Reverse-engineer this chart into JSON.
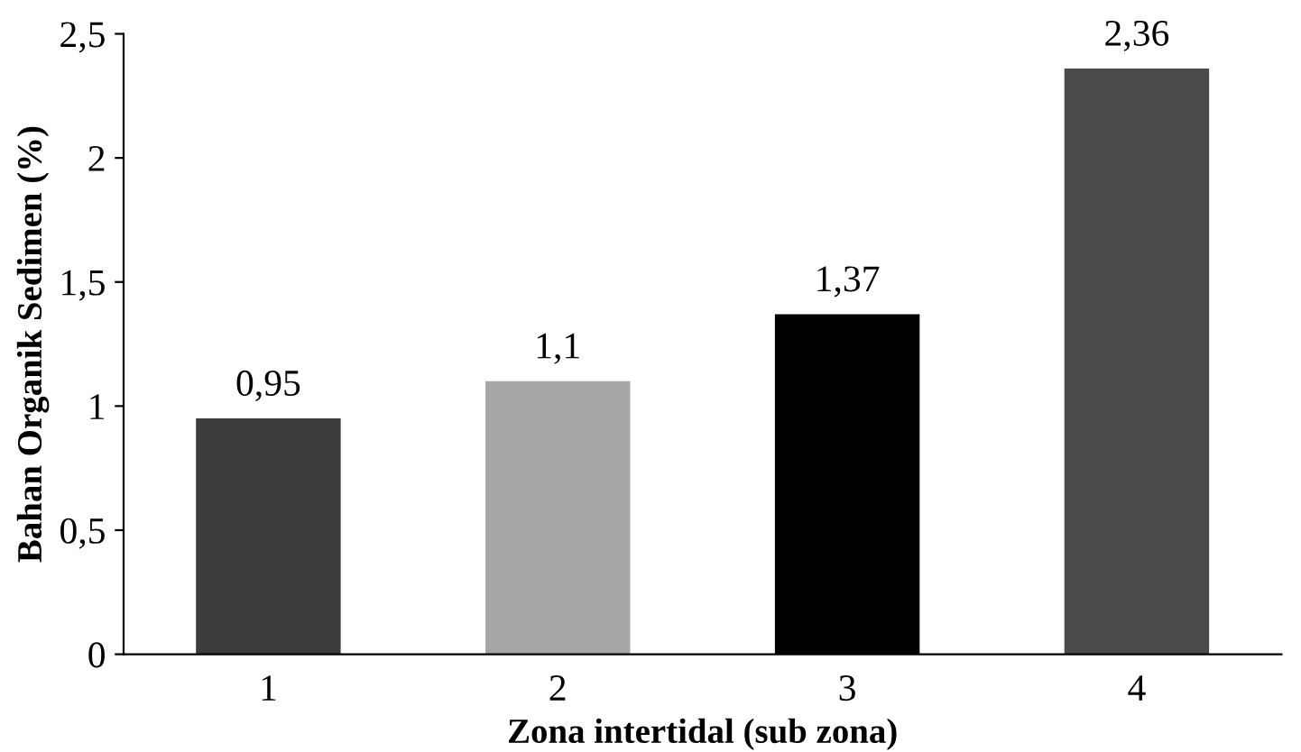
{
  "chart_data": {
    "type": "bar",
    "xlabel": "Zona intertidal (sub zona)",
    "ylabel": "Bahan Organik Sedimen (%)",
    "categories": [
      "1",
      "2",
      "3",
      "4"
    ],
    "values": [
      0.95,
      1.1,
      1.37,
      2.36
    ],
    "value_labels": [
      "0,95",
      "1,1",
      "1,37",
      "2,36"
    ],
    "colors": [
      "#3c3c3c",
      "#a6a6a6",
      "#000000",
      "#4a4a4a"
    ],
    "ylim": [
      0,
      2.5
    ],
    "yticks": [
      0,
      {
        "value": 0.5,
        "label": "0,5"
      },
      1,
      {
        "value": 1.5,
        "label": "1,5"
      },
      2,
      {
        "value": 2.5,
        "label": "2,5"
      }
    ],
    "grid": false,
    "legend": false
  }
}
